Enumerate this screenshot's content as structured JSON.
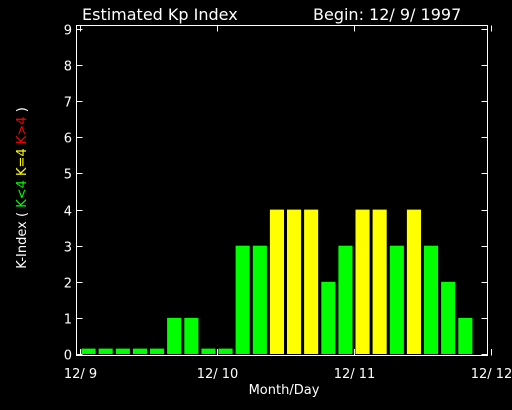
{
  "header": {
    "title": "Estimated Kp Index",
    "begin": "Begin: 12/ 9/ 1997"
  },
  "colors": {
    "background": "#000000",
    "axes": "#ffffff",
    "green": "#00ff00",
    "yellow": "#ffff00",
    "red": "#ff0000"
  },
  "chart_data": {
    "type": "bar",
    "title": "Estimated Kp Index",
    "subtitle": "Begin: 12/ 9/ 1997",
    "xlabel": "Month/Day",
    "ylabel": {
      "prefix": "K-Index",
      "open": "(",
      "lt": "K<4",
      "eq": "K=4",
      "gt": "K>4",
      "close": ")"
    },
    "ylim": [
      0,
      9
    ],
    "yticks": [
      "0",
      "1",
      "2",
      "3",
      "4",
      "5",
      "6",
      "7",
      "8",
      "9"
    ],
    "xticks": [
      "12/ 9",
      "12/ 10",
      "12/ 11",
      "12/ 12"
    ],
    "bins_per_day": 8,
    "values": [
      0.15,
      0.15,
      0.15,
      0.15,
      0.15,
      1,
      1,
      0.15,
      0.15,
      3,
      3,
      4,
      4,
      4,
      2,
      3,
      4,
      4,
      3,
      4,
      3,
      2,
      1
    ],
    "color_rule": "K<4 green, K=4 yellow, K>4 red",
    "grid": false
  }
}
